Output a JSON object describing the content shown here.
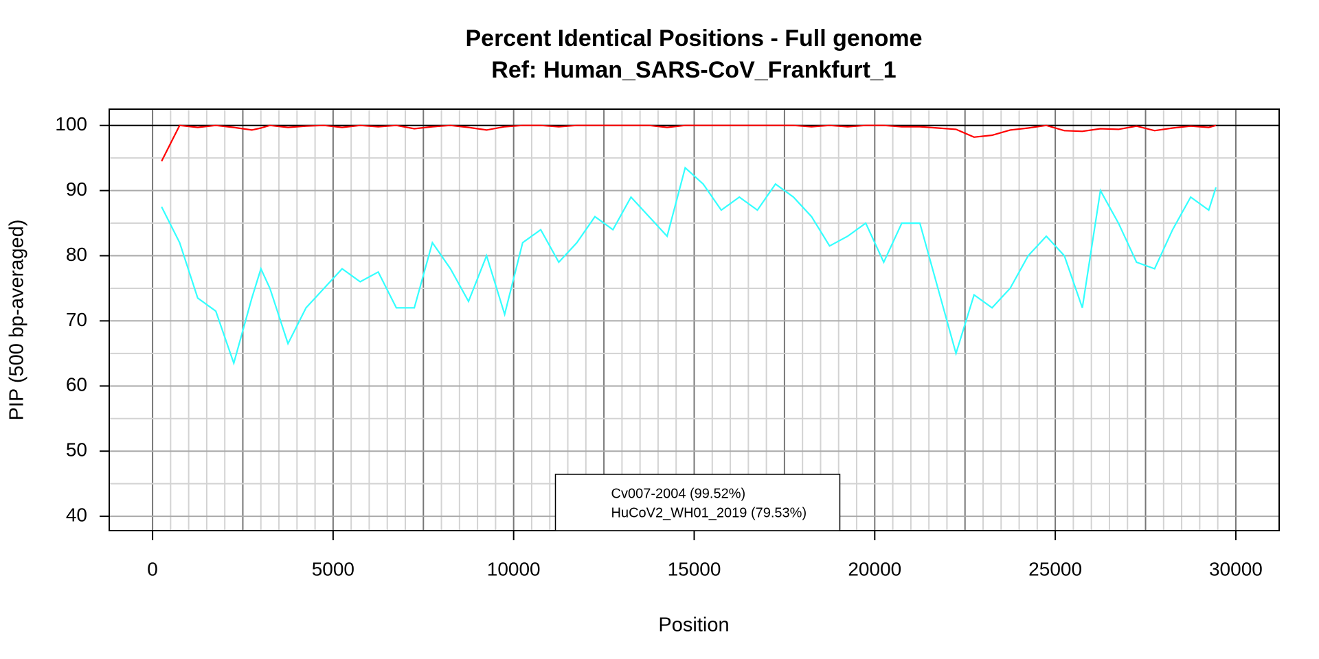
{
  "chart_data": {
    "type": "line",
    "title": "Percent Identical Positions - Full genome",
    "subtitle": "Ref: Human_SARS-CoV_Frankfurt_1",
    "x_label": "Position",
    "y_label": "PIP (500 bp-averaged)",
    "x": [
      250,
      750,
      1250,
      1750,
      2250,
      2750,
      3000,
      3250,
      3750,
      4250,
      4750,
      5250,
      5750,
      6250,
      6750,
      7250,
      7750,
      8250,
      8750,
      9250,
      9750,
      10250,
      10750,
      11250,
      11750,
      12250,
      12750,
      13250,
      13750,
      14250,
      14750,
      15250,
      15750,
      16250,
      16750,
      17250,
      17750,
      18250,
      18750,
      19250,
      19750,
      20250,
      20750,
      21250,
      21750,
      22250,
      22750,
      23250,
      23750,
      24250,
      24750,
      25250,
      25750,
      26250,
      26750,
      27250,
      27750,
      28250,
      28750,
      29250,
      29450
    ],
    "series": [
      {
        "name": "Cv007-2004 (99.52%)",
        "color": "#ff0000",
        "values": [
          94.5,
          100,
          99.7,
          100,
          99.7,
          99.3,
          99.6,
          100,
          99.7,
          99.9,
          100,
          99.7,
          100,
          99.8,
          100,
          99.5,
          99.8,
          100,
          99.7,
          99.3,
          99.8,
          100,
          100,
          99.8,
          100,
          100,
          100,
          100,
          100,
          99.7,
          100,
          100,
          100,
          100,
          100,
          100,
          100,
          99.8,
          100,
          99.8,
          100,
          100,
          99.8,
          99.8,
          99.6,
          99.4,
          98.2,
          98.5,
          99.3,
          99.6,
          100,
          99.2,
          99.1,
          99.5,
          99.4,
          99.9,
          99.2,
          99.6,
          99.9,
          99.7,
          100
        ]
      },
      {
        "name": "HuCoV2_WH01_2019 (79.53%)",
        "color": "#33ffff",
        "values": [
          87.5,
          82,
          73.5,
          71.5,
          63.5,
          73.5,
          78,
          75,
          66.5,
          72,
          75,
          78,
          76,
          77.5,
          72,
          72,
          82,
          78,
          73,
          80,
          71,
          82,
          84,
          79,
          82,
          86,
          84,
          89,
          86,
          83,
          93.5,
          91,
          87,
          89,
          87,
          91,
          89,
          86,
          81.5,
          83,
          85,
          79,
          85,
          85,
          75,
          65,
          74,
          72,
          75,
          80,
          83,
          80,
          72,
          90,
          85,
          79,
          78,
          84,
          89,
          87,
          90.5
        ]
      }
    ],
    "hline": 100,
    "xlim": [
      -1200,
      31200
    ],
    "ylim": [
      37.8,
      102.5
    ],
    "xticks": [
      0,
      5000,
      10000,
      15000,
      20000,
      25000,
      30000
    ],
    "yticks": [
      40,
      50,
      60,
      70,
      80,
      90,
      100
    ],
    "xgrid": [
      0,
      500,
      1000,
      1500,
      2000,
      2500,
      3000,
      3500,
      4000,
      4500,
      5000,
      5500,
      6000,
      6500,
      7000,
      7500,
      8000,
      8500,
      9000,
      9500,
      10000,
      10500,
      11000,
      11500,
      12000,
      12500,
      13000,
      13500,
      14000,
      14500,
      15000,
      15500,
      16000,
      16500,
      17000,
      17500,
      18000,
      18500,
      19000,
      19500,
      20000,
      20500,
      21000,
      21500,
      22000,
      22500,
      23000,
      23500,
      24000,
      24500,
      25000,
      25500,
      26000,
      26500,
      27000,
      27500,
      28000,
      28500,
      29000,
      29500,
      30000
    ],
    "ygrid": [
      40,
      45,
      50,
      55,
      60,
      65,
      70,
      75,
      80,
      85,
      90,
      95,
      100
    ],
    "legend": "bottom"
  }
}
